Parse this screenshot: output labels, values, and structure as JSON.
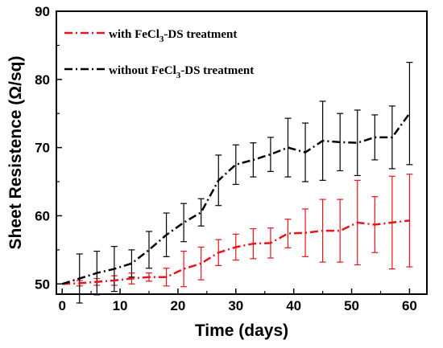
{
  "chart_data": {
    "type": "line",
    "xlabel": "Time (days)",
    "ylabel": "Sheet Resistence (Ω/sq)",
    "xlim": [
      -1,
      63
    ],
    "ylim": [
      48.5,
      90
    ],
    "xticks": [
      0,
      10,
      20,
      30,
      40,
      50,
      60
    ],
    "yticks": [
      50,
      60,
      70,
      80,
      90
    ],
    "grid": false,
    "legend_position": "top-left",
    "series": [
      {
        "name": "with FeCl3-DS treatment",
        "legend_main": "with FeCl",
        "legend_sub": "3",
        "legend_rest": "-DS treatment",
        "color": "#e8141b",
        "line_style": "dash-dot",
        "x": [
          0,
          3,
          6,
          9,
          12,
          15,
          18,
          21,
          24,
          27,
          30,
          33,
          36,
          39,
          42,
          45,
          48,
          51,
          54,
          57,
          60
        ],
        "y": [
          50.0,
          50.1,
          50.3,
          50.5,
          50.8,
          51.0,
          51.0,
          52.2,
          53.0,
          54.6,
          55.4,
          55.9,
          56.0,
          57.4,
          57.5,
          57.8,
          57.8,
          59.0,
          58.7,
          59.0,
          59.3
        ],
        "err": [
          0,
          0.4,
          0.5,
          0.7,
          0.8,
          0.6,
          1.3,
          2.6,
          2.4,
          1.9,
          1.9,
          2.2,
          2.2,
          2.1,
          3.5,
          4.6,
          4.6,
          6.2,
          4.1,
          6.8,
          6.8
        ]
      },
      {
        "name": "without FeCl3-DS treatment",
        "legend_main": "without FeCl",
        "legend_sub": "3",
        "legend_rest": "-DS treatment",
        "color": "#000000",
        "line_style": "dash-dot",
        "x": [
          0,
          3,
          6,
          9,
          12,
          15,
          18,
          21,
          24,
          27,
          30,
          33,
          36,
          39,
          42,
          45,
          48,
          51,
          54,
          57,
          60
        ],
        "y": [
          50.0,
          50.8,
          51.6,
          52.2,
          53.0,
          55.0,
          57.2,
          59.0,
          60.5,
          65.2,
          67.5,
          68.2,
          69.0,
          70.0,
          69.3,
          71.0,
          70.8,
          70.7,
          71.5,
          71.5,
          75.0
        ],
        "err": [
          0,
          3.6,
          3.2,
          3.3,
          2.0,
          2.7,
          3.2,
          2.8,
          2.0,
          3.7,
          2.9,
          2.5,
          2.5,
          4.3,
          4.3,
          5.8,
          4.2,
          4.8,
          3.3,
          4.6,
          7.5
        ]
      }
    ]
  }
}
